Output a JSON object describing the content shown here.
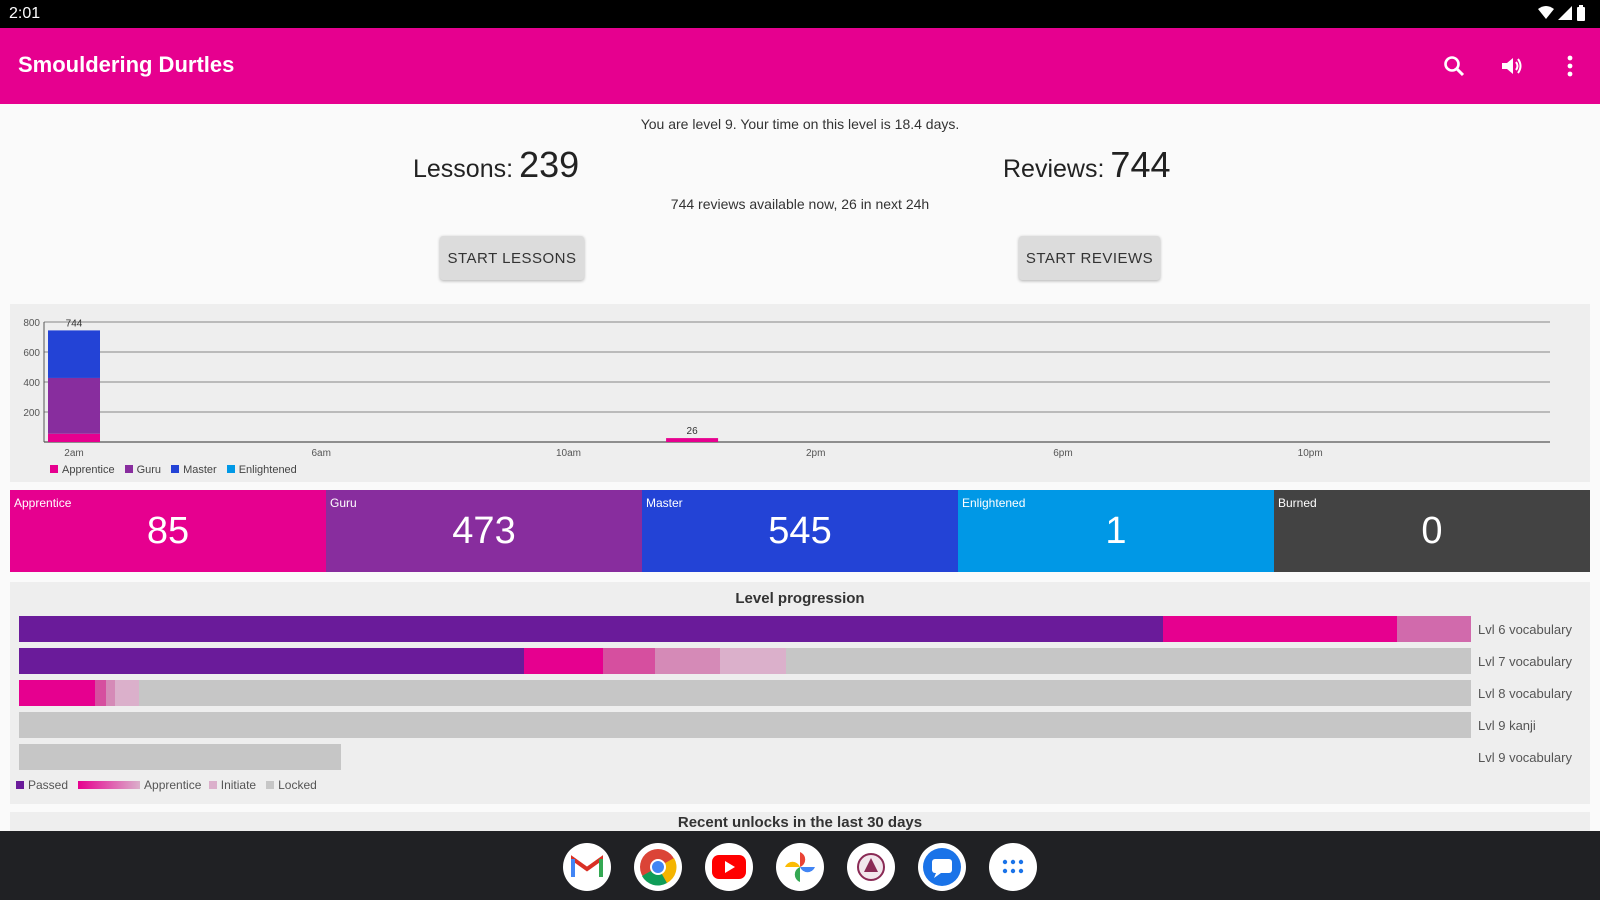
{
  "status_bar": {
    "time": "2:01"
  },
  "app_bar": {
    "title": "Smouldering Durtles"
  },
  "summary": {
    "level_text": "You are level 9. Your time on this level is 18.4 days.",
    "lessons_label": "Lessons:",
    "lessons_count": "239",
    "reviews_label": "Reviews:",
    "reviews_count": "744",
    "availability_text": "744 reviews available now, 26 in next 24h",
    "start_lessons_label": "START LESSONS",
    "start_reviews_label": "START REVIEWS"
  },
  "chart_data": {
    "type": "bar",
    "stacked": true,
    "x_tick_labels": [
      "2am",
      "6am",
      "10am",
      "2pm",
      "6pm",
      "10pm"
    ],
    "y_tick_labels": [
      "800",
      "600",
      "400",
      "200"
    ],
    "ylim": [
      0,
      800
    ],
    "grid": true,
    "legend_position": "bottom-left",
    "series_colors": {
      "Apprentice": "#e6008f",
      "Guru": "#882d9e",
      "Master": "#2343d6",
      "Enlightened": "#0098e6"
    },
    "bars": [
      {
        "x": "2am",
        "label": "744",
        "segments": [
          {
            "series": "Apprentice",
            "value": 55
          },
          {
            "series": "Guru",
            "value": 372
          },
          {
            "series": "Master",
            "value": 317
          },
          {
            "series": "Enlightened",
            "value": 0
          }
        ]
      },
      {
        "x": "12pm",
        "label": "26",
        "segments": [
          {
            "series": "Apprentice",
            "value": 26
          }
        ]
      }
    ],
    "legend": [
      "Apprentice",
      "Guru",
      "Master",
      "Enlightened"
    ]
  },
  "srs_stages": [
    {
      "label": "Apprentice",
      "value": "85",
      "color": "#e6008f"
    },
    {
      "label": "Guru",
      "value": "473",
      "color": "#882d9e"
    },
    {
      "label": "Master",
      "value": "545",
      "color": "#2343d6"
    },
    {
      "label": "Enlightened",
      "value": "1",
      "color": "#0098e6"
    },
    {
      "label": "Burned",
      "value": "0",
      "color": "#434343"
    }
  ],
  "level_progression": {
    "title": "Level progression",
    "rows": [
      {
        "label": "Lvl 6 vocabulary",
        "total_fraction": 1.0,
        "segments": [
          {
            "kind": "passed",
            "fraction": 0.788,
            "color": "#6a1b9a"
          },
          {
            "kind": "apprentice",
            "fraction": 0.161,
            "color": "#e6008f"
          },
          {
            "kind": "apprentice-low",
            "fraction": 0.051,
            "color": "#d16aac"
          }
        ]
      },
      {
        "label": "Lvl 7 vocabulary",
        "total_fraction": 1.0,
        "segments": [
          {
            "kind": "passed",
            "fraction": 0.348,
            "color": "#6a1b9a"
          },
          {
            "kind": "apprentice",
            "fraction": 0.054,
            "color": "#e6008f"
          },
          {
            "kind": "apprentice-2",
            "fraction": 0.036,
            "color": "#d64f9f"
          },
          {
            "kind": "apprentice-3",
            "fraction": 0.045,
            "color": "#d58ab7"
          },
          {
            "kind": "initiate",
            "fraction": 0.045,
            "color": "#dbb0cb"
          }
        ]
      },
      {
        "label": "Lvl 8 vocabulary",
        "total_fraction": 1.0,
        "segments": [
          {
            "kind": "apprentice",
            "fraction": 0.052,
            "color": "#e6008f"
          },
          {
            "kind": "apprentice-2",
            "fraction": 0.008,
            "color": "#d64f9f"
          },
          {
            "kind": "apprentice-3",
            "fraction": 0.006,
            "color": "#d58ab7"
          },
          {
            "kind": "initiate",
            "fraction": 0.017,
            "color": "#dbb0cb"
          }
        ]
      },
      {
        "label": "Lvl 9 kanji",
        "total_fraction": 1.0,
        "segments": []
      },
      {
        "label": "Lvl 9 vocabulary",
        "total_fraction": 0.222,
        "segments": []
      }
    ],
    "legend": {
      "passed": "Passed",
      "apprentice": "Apprentice",
      "initiate": "Initiate",
      "locked": "Locked"
    }
  },
  "recent_unlocks": {
    "title": "Recent unlocks in the last 30 days"
  },
  "dock": {
    "apps": [
      {
        "name": "gmail-icon"
      },
      {
        "name": "chrome-icon"
      },
      {
        "name": "youtube-icon"
      },
      {
        "name": "photos-icon"
      },
      {
        "name": "smouldering-durtles-icon"
      },
      {
        "name": "messages-icon"
      },
      {
        "name": "app-drawer-icon"
      }
    ]
  }
}
